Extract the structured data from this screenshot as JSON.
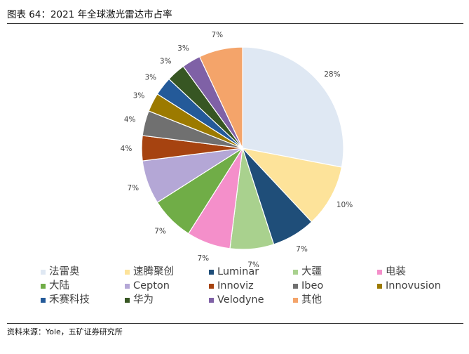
{
  "title": "图表 64：2021 年全球激光雷达市占率",
  "source": "资料来源：Yole，五矿证券研究所",
  "chart_data": {
    "type": "pie",
    "start": "12 o'clock",
    "direction": "clockwise",
    "legend_position": "bottom",
    "slices": [
      {
        "name": "法雷奥",
        "value": 28,
        "label": "28%",
        "color": "#dfe8f3"
      },
      {
        "name": "速腾聚创",
        "value": 10,
        "label": "10%",
        "color": "#fde39a"
      },
      {
        "name": "Luminar",
        "value": 7,
        "label": "7%",
        "color": "#1f4e79"
      },
      {
        "name": "大疆",
        "value": 7,
        "label": "7%",
        "color": "#a9d18e"
      },
      {
        "name": "电装",
        "value": 7,
        "label": "7%",
        "color": "#f48fca"
      },
      {
        "name": "大陆",
        "value": 7,
        "label": "7%",
        "color": "#70ad47"
      },
      {
        "name": "Cepton",
        "value": 7,
        "label": "7%",
        "color": "#b4a7d6"
      },
      {
        "name": "Innoviz",
        "value": 4,
        "label": "4%",
        "color": "#a64310"
      },
      {
        "name": "Ibeo",
        "value": 4,
        "label": "4%",
        "color": "#707070"
      },
      {
        "name": "Innovusion",
        "value": 3,
        "label": "3%",
        "color": "#9c7a00"
      },
      {
        "name": "禾赛科技",
        "value": 3,
        "label": "3%",
        "color": "#245a99"
      },
      {
        "name": "华为",
        "value": 3,
        "label": "3%",
        "color": "#375623"
      },
      {
        "name": "Velodyne",
        "value": 3,
        "label": "3%",
        "color": "#7f61a6"
      },
      {
        "name": "其他",
        "value": 7,
        "label": "7%",
        "color": "#f4a46a"
      }
    ]
  }
}
